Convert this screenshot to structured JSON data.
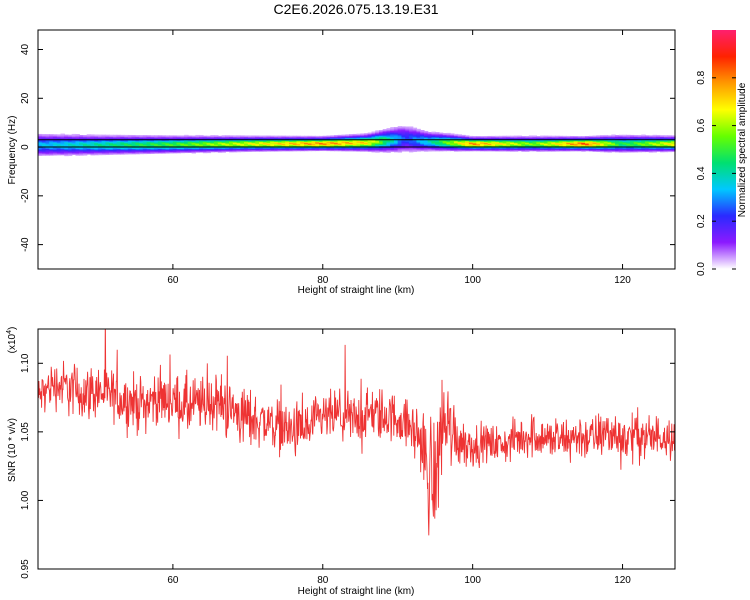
{
  "figure_title": "C2E6.2026.075.13.19.E31",
  "chart_data": [
    {
      "type": "heatmap",
      "title": "",
      "xlabel": "Height of straight line (km)",
      "ylabel": "Frequency (Hz)",
      "xlim": [
        42,
        127
      ],
      "ylim": [
        -50,
        48
      ],
      "x_ticks": [
        60,
        80,
        100,
        120
      ],
      "y_ticks": [
        -40,
        -20,
        0,
        20,
        40
      ],
      "x_tick_labels": [
        "60",
        "80",
        "100",
        "120"
      ],
      "y_tick_labels": [
        "-40",
        "-20",
        "0",
        "20",
        "40"
      ],
      "reference_lines_hz": [
        0,
        3
      ],
      "band_profile": [
        {
          "x": 42,
          "center": 1.0,
          "half_width": 3.5,
          "amplitude": 0.35
        },
        {
          "x": 50,
          "center": 1.0,
          "half_width": 3.0,
          "amplitude": 0.45
        },
        {
          "x": 60,
          "center": 1.2,
          "half_width": 2.6,
          "amplitude": 0.55
        },
        {
          "x": 70,
          "center": 1.5,
          "half_width": 2.2,
          "amplitude": 0.7
        },
        {
          "x": 80,
          "center": 1.6,
          "half_width": 2.0,
          "amplitude": 0.85
        },
        {
          "x": 86,
          "center": 2.0,
          "half_width": 2.5,
          "amplitude": 0.75
        },
        {
          "x": 91,
          "center": 3.5,
          "half_width": 4.5,
          "amplitude": 0.25
        },
        {
          "x": 94,
          "center": 2.5,
          "half_width": 3.0,
          "amplitude": 0.4
        },
        {
          "x": 100,
          "center": 1.5,
          "half_width": 2.0,
          "amplitude": 0.85
        },
        {
          "x": 108,
          "center": 1.5,
          "half_width": 2.2,
          "amplitude": 0.6
        },
        {
          "x": 115,
          "center": 1.5,
          "half_width": 2.0,
          "amplitude": 0.9
        },
        {
          "x": 120,
          "center": 1.5,
          "half_width": 2.6,
          "amplitude": 0.5
        },
        {
          "x": 127,
          "center": 1.5,
          "half_width": 2.2,
          "amplitude": 0.75
        }
      ],
      "colorbar": {
        "label": "Normalized spectral amplitude",
        "range": [
          0,
          1
        ],
        "ticks": [
          0.0,
          0.2,
          0.4,
          0.6,
          0.8
        ],
        "tick_labels": [
          "0.0",
          "0.2",
          "0.4",
          "0.6",
          "0.8"
        ],
        "colors": [
          "#ffffff",
          "#8c1aff",
          "#2a2aff",
          "#00c8ff",
          "#00e070",
          "#66ff00",
          "#ffff00",
          "#ff9900",
          "#ff2200",
          "#ff1f6e"
        ]
      }
    },
    {
      "type": "line",
      "title": "",
      "xlabel": "Height of straight line (km)",
      "ylabel": "SNR (10 * v/v)",
      "multiplier_label": "(x10",
      "multiplier_exponent": "4",
      "multiplier_close": ")",
      "xlim": [
        42,
        127
      ],
      "ylim": [
        0.95,
        1.125
      ],
      "x_ticks": [
        60,
        80,
        100,
        120
      ],
      "y_ticks": [
        0.95,
        1.0,
        1.05,
        1.1
      ],
      "x_tick_labels": [
        "60",
        "80",
        "100",
        "120"
      ],
      "y_tick_labels": [
        "0.95",
        "1.00",
        "1.05",
        "1.10"
      ],
      "color": "#ee3333",
      "series": [
        {
          "x": [
            42,
            44,
            46,
            48,
            50,
            52,
            54,
            56,
            58,
            60,
            62,
            64,
            66,
            68,
            70,
            72,
            74,
            76,
            78,
            80,
            82,
            84,
            86,
            88,
            90,
            92,
            93,
            94,
            95,
            96,
            98,
            100,
            102,
            104,
            106,
            108,
            110,
            112,
            114,
            116,
            118,
            120,
            122,
            124,
            126,
            127
          ],
          "values": [
            1.075,
            1.085,
            1.082,
            1.078,
            1.08,
            1.076,
            1.072,
            1.07,
            1.075,
            1.072,
            1.068,
            1.07,
            1.072,
            1.065,
            1.06,
            1.058,
            1.055,
            1.05,
            1.052,
            1.06,
            1.062,
            1.058,
            1.063,
            1.062,
            1.06,
            1.052,
            1.045,
            1.02,
            1.015,
            1.06,
            1.045,
            1.04,
            1.042,
            1.04,
            1.045,
            1.048,
            1.045,
            1.043,
            1.047,
            1.045,
            1.05,
            1.045,
            1.048,
            1.045,
            1.05,
            1.043
          ],
          "noise_amplitude": [
            0.022,
            0.025,
            0.03,
            0.028,
            0.03,
            0.028,
            0.03,
            0.03,
            0.028,
            0.027,
            0.035,
            0.03,
            0.03,
            0.035,
            0.032,
            0.028,
            0.028,
            0.03,
            0.03,
            0.025,
            0.028,
            0.03,
            0.028,
            0.03,
            0.025,
            0.028,
            0.04,
            0.06,
            0.07,
            0.06,
            0.03,
            0.022,
            0.02,
            0.02,
            0.022,
            0.025,
            0.022,
            0.025,
            0.025,
            0.025,
            0.025,
            0.028,
            0.025,
            0.025,
            0.025,
            0.022
          ]
        }
      ]
    }
  ]
}
